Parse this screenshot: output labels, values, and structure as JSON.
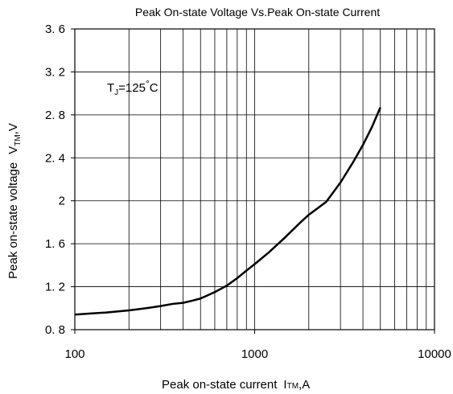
{
  "chart_data": {
    "type": "line",
    "title": "Peak On-state Voltage Vs.Peak On-state Current",
    "xlabel": {
      "main": "Peak on-state current",
      "symbol": "I",
      "sub": "TM",
      "unit": ",A"
    },
    "ylabel": {
      "main": "Peak on-state voltage",
      "symbol": "V",
      "sub": "TM",
      "unit": ",V"
    },
    "annotation": {
      "symbol": "T",
      "sub": "J",
      "value": "=125",
      "degree": "°",
      "unit": "C"
    },
    "x_scale": "log",
    "xlim": [
      100,
      10000
    ],
    "ylim": [
      0.8,
      3.6
    ],
    "x_tick_values": [
      100,
      1000,
      10000
    ],
    "x_tick_labels": [
      "100",
      "1000",
      "10000"
    ],
    "y_tick_values": [
      0.8,
      1.2,
      1.6,
      2.0,
      2.4,
      2.8,
      3.2,
      3.6
    ],
    "y_tick_labels": [
      "0. 8",
      "1. 2",
      "1. 6",
      "2",
      "2. 4",
      "2. 8",
      "3. 2",
      "3. 6"
    ],
    "grid": true,
    "series": [
      {
        "x": [
          100,
          120,
          150,
          200,
          250,
          300,
          350,
          400,
          450,
          500,
          600,
          700,
          800,
          900,
          1000,
          1200,
          1500,
          1800,
          2000,
          2500,
          3000,
          3500,
          4000,
          4500,
          5000
        ],
        "y": [
          0.94,
          0.95,
          0.96,
          0.98,
          1.0,
          1.02,
          1.04,
          1.05,
          1.07,
          1.09,
          1.15,
          1.21,
          1.28,
          1.35,
          1.41,
          1.52,
          1.67,
          1.8,
          1.87,
          1.99,
          2.17,
          2.35,
          2.52,
          2.69,
          2.87
        ]
      }
    ]
  }
}
